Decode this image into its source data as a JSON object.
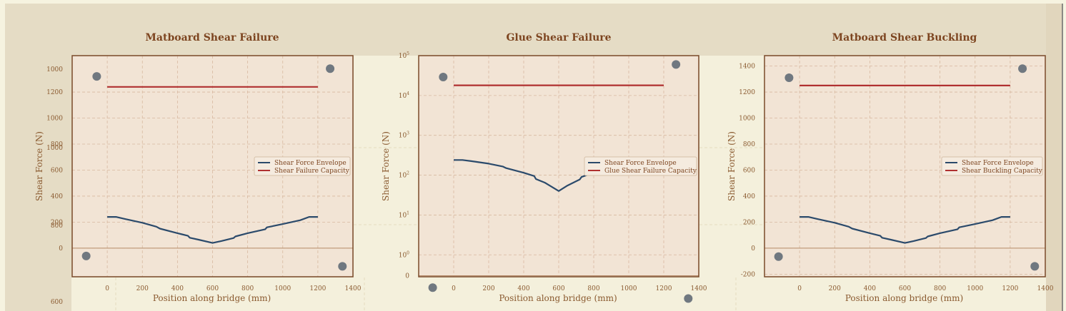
{
  "chart_data": [
    {
      "type": "line",
      "title": "Matboard Shear Failure",
      "xlabel": "Position along bridge (mm)",
      "ylabel": "Shear Force (N)",
      "xlim": [
        -200,
        1400
      ],
      "ylim": [
        -220,
        1480
      ],
      "xticks": [
        0,
        200,
        400,
        600,
        800,
        1000,
        1200,
        1400
      ],
      "yticks": [
        0,
        200,
        400,
        600,
        800,
        1000,
        1200
      ],
      "grid": true,
      "legend_position": "center-right",
      "series": [
        {
          "name": "Shear Force Envelope",
          "color": "#2b4a6b",
          "x": [
            0,
            50,
            100,
            200,
            280,
            300,
            400,
            460,
            470,
            520,
            600,
            650,
            720,
            730,
            800,
            900,
            910,
            1000,
            1100,
            1150,
            1200
          ],
          "y": [
            240,
            240,
            225,
            195,
            165,
            150,
            115,
            95,
            80,
            65,
            40,
            55,
            78,
            90,
            115,
            145,
            160,
            185,
            215,
            240,
            240
          ]
        },
        {
          "name": "Shear Failure Capacity",
          "color": "#b03030",
          "x": [
            0,
            1200
          ],
          "y": [
            1240,
            1240
          ]
        }
      ],
      "decorations": {
        "color": "#707880",
        "points": [
          [
            -120,
            -60
          ],
          [
            -60,
            1320
          ],
          [
            1270,
            1380
          ],
          [
            1340,
            -140
          ]
        ]
      }
    },
    {
      "type": "line",
      "title": "Glue Shear Failure",
      "xlabel": "Position along bridge (mm)",
      "ylabel": "Shear Force (N)",
      "xlim": [
        -200,
        1400
      ],
      "yscale": "log",
      "ylim_exp": [
        -0.55,
        5.0
      ],
      "xticks": [
        0,
        200,
        400,
        600,
        800,
        1000,
        1200,
        1400
      ],
      "yticks": [
        {
          "base": "10",
          "exp": "0",
          "value": 1
        },
        {
          "base": "10",
          "exp": "1",
          "value": 10
        },
        {
          "base": "10",
          "exp": "2",
          "value": 100
        },
        {
          "base": "10",
          "exp": "3",
          "value": 1000
        },
        {
          "base": "10",
          "exp": "4",
          "value": 10000
        },
        {
          "base": "10",
          "exp": "5",
          "value": 100000
        }
      ],
      "extra_ytick": {
        "label": "0",
        "value": 0.3
      },
      "grid": true,
      "legend_position": "center-right",
      "series": [
        {
          "name": "Shear Force Envelope",
          "color": "#2b4a6b",
          "x": [
            0,
            50,
            100,
            200,
            280,
            300,
            400,
            460,
            470,
            520,
            600,
            650,
            720,
            730,
            800,
            900,
            910,
            1000,
            1100,
            1150,
            1200
          ],
          "y": [
            240,
            240,
            225,
            195,
            165,
            150,
            115,
            95,
            80,
            65,
            40,
            55,
            78,
            90,
            115,
            145,
            160,
            185,
            215,
            240,
            240
          ]
        },
        {
          "name": "Glue Shear Failure Capacity",
          "color": "#b03030",
          "x": [
            0,
            1200
          ],
          "y": [
            18000,
            18000
          ]
        }
      ],
      "decorations": {
        "color": "#707880",
        "points": [
          [
            -120,
            0.15
          ],
          [
            -60,
            29000
          ],
          [
            1270,
            60000
          ],
          [
            1340,
            0.08
          ]
        ]
      }
    },
    {
      "type": "line",
      "title": "Matboard Shear Buckling",
      "xlabel": "Position along bridge (mm)",
      "ylabel": "Shear Force (N)",
      "xlim": [
        -200,
        1400
      ],
      "ylim": [
        -220,
        1480
      ],
      "xticks": [
        0,
        200,
        400,
        600,
        800,
        1000,
        1200,
        1400
      ],
      "yticks": [
        -200,
        0,
        200,
        400,
        600,
        800,
        1000,
        1200,
        1400
      ],
      "grid": true,
      "legend_position": "center-right",
      "series": [
        {
          "name": "Shear Force Envelope",
          "color": "#2b4a6b",
          "x": [
            0,
            50,
            100,
            200,
            280,
            300,
            400,
            460,
            470,
            520,
            600,
            650,
            720,
            730,
            800,
            900,
            910,
            1000,
            1100,
            1150,
            1200
          ],
          "y": [
            240,
            240,
            225,
            195,
            165,
            150,
            115,
            95,
            80,
            65,
            40,
            55,
            78,
            90,
            115,
            145,
            160,
            185,
            215,
            240,
            240
          ]
        },
        {
          "name": "Shear Buckling Capacity",
          "color": "#b03030",
          "x": [
            0,
            1200
          ],
          "y": [
            1250,
            1250
          ]
        }
      ],
      "decorations": {
        "color": "#707880",
        "points": [
          [
            -120,
            -65
          ],
          [
            -60,
            1310
          ],
          [
            1270,
            1380
          ],
          [
            1340,
            -140
          ]
        ]
      }
    }
  ],
  "ghost_ticks": [
    "1000",
    "800",
    "600"
  ]
}
